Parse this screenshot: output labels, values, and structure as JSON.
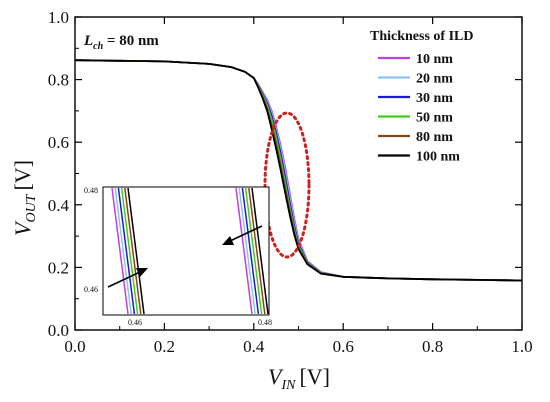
{
  "chart_data": {
    "type": "line",
    "xlabel_main": "V",
    "xlabel_sub": "IN",
    "xlabel_unit": "[V]",
    "ylabel_main": "V",
    "ylabel_sub": "OUT",
    "ylabel_unit": "[V]",
    "xlim": [
      0.0,
      1.0
    ],
    "ylim": [
      0.0,
      1.0
    ],
    "xticks": [
      "0.0",
      "0.2",
      "0.4",
      "0.6",
      "0.8",
      "1.0"
    ],
    "yticks": [
      "0.0",
      "0.2",
      "0.4",
      "0.6",
      "0.8",
      "1.0"
    ],
    "annotation_main": "L",
    "annotation_sub": "ch",
    "annotation_rest": " = 80 nm",
    "legend_title": "Thickness of ILD",
    "legend_position": "top-right",
    "series": [
      {
        "name": "10 nm",
        "color": "#c040e0",
        "x": [
          0.0,
          0.1,
          0.2,
          0.3,
          0.35,
          0.38,
          0.4,
          0.41,
          0.42,
          0.43,
          0.44,
          0.45,
          0.46,
          0.47,
          0.48,
          0.49,
          0.5,
          0.52,
          0.55,
          0.6,
          0.7,
          0.8,
          0.9,
          1.0
        ],
        "y": [
          0.862,
          0.86,
          0.858,
          0.85,
          0.84,
          0.825,
          0.805,
          0.785,
          0.76,
          0.735,
          0.7,
          0.65,
          0.59,
          0.52,
          0.44,
          0.36,
          0.29,
          0.22,
          0.185,
          0.17,
          0.165,
          0.162,
          0.16,
          0.158
        ]
      },
      {
        "name": "20 nm",
        "color": "#8fc4ee",
        "x": [
          0.0,
          0.1,
          0.2,
          0.3,
          0.35,
          0.38,
          0.4,
          0.41,
          0.42,
          0.43,
          0.44,
          0.45,
          0.46,
          0.47,
          0.48,
          0.49,
          0.5,
          0.52,
          0.55,
          0.6,
          0.7,
          0.8,
          0.9,
          1.0
        ],
        "y": [
          0.862,
          0.86,
          0.858,
          0.85,
          0.84,
          0.825,
          0.805,
          0.783,
          0.757,
          0.73,
          0.692,
          0.64,
          0.578,
          0.505,
          0.425,
          0.348,
          0.282,
          0.218,
          0.184,
          0.17,
          0.165,
          0.162,
          0.16,
          0.158
        ]
      },
      {
        "name": "30 nm",
        "color": "#1a1ad0",
        "x": [
          0.0,
          0.1,
          0.2,
          0.3,
          0.35,
          0.38,
          0.4,
          0.41,
          0.42,
          0.43,
          0.44,
          0.45,
          0.46,
          0.47,
          0.48,
          0.49,
          0.5,
          0.52,
          0.55,
          0.6,
          0.7,
          0.8,
          0.9,
          1.0
        ],
        "y": [
          0.862,
          0.86,
          0.858,
          0.85,
          0.84,
          0.825,
          0.805,
          0.781,
          0.754,
          0.725,
          0.684,
          0.63,
          0.565,
          0.49,
          0.41,
          0.336,
          0.275,
          0.216,
          0.183,
          0.17,
          0.165,
          0.162,
          0.16,
          0.158
        ]
      },
      {
        "name": "50 nm",
        "color": "#44cc22",
        "x": [
          0.0,
          0.1,
          0.2,
          0.3,
          0.35,
          0.38,
          0.4,
          0.41,
          0.42,
          0.43,
          0.44,
          0.45,
          0.46,
          0.47,
          0.48,
          0.49,
          0.5,
          0.52,
          0.55,
          0.6,
          0.7,
          0.8,
          0.9,
          1.0
        ],
        "y": [
          0.862,
          0.86,
          0.858,
          0.85,
          0.84,
          0.825,
          0.805,
          0.779,
          0.75,
          0.718,
          0.672,
          0.615,
          0.548,
          0.472,
          0.395,
          0.325,
          0.268,
          0.214,
          0.182,
          0.17,
          0.165,
          0.162,
          0.16,
          0.158
        ]
      },
      {
        "name": "80 nm",
        "color": "#8b4513",
        "x": [
          0.0,
          0.1,
          0.2,
          0.3,
          0.35,
          0.38,
          0.4,
          0.41,
          0.42,
          0.43,
          0.44,
          0.45,
          0.46,
          0.47,
          0.48,
          0.49,
          0.5,
          0.52,
          0.55,
          0.6,
          0.7,
          0.8,
          0.9,
          1.0
        ],
        "y": [
          0.862,
          0.86,
          0.858,
          0.85,
          0.84,
          0.825,
          0.805,
          0.776,
          0.745,
          0.708,
          0.655,
          0.595,
          0.528,
          0.455,
          0.382,
          0.315,
          0.262,
          0.212,
          0.181,
          0.17,
          0.165,
          0.162,
          0.16,
          0.158
        ]
      },
      {
        "name": "100 nm",
        "color": "#000000",
        "x": [
          0.0,
          0.1,
          0.2,
          0.3,
          0.35,
          0.38,
          0.4,
          0.41,
          0.42,
          0.43,
          0.44,
          0.45,
          0.46,
          0.47,
          0.48,
          0.49,
          0.5,
          0.52,
          0.55,
          0.6,
          0.7,
          0.8,
          0.9,
          1.0
        ],
        "y": [
          0.862,
          0.86,
          0.858,
          0.85,
          0.84,
          0.825,
          0.805,
          0.774,
          0.74,
          0.7,
          0.642,
          0.58,
          0.512,
          0.44,
          0.37,
          0.308,
          0.258,
          0.21,
          0.18,
          0.17,
          0.165,
          0.162,
          0.16,
          0.158
        ]
      }
    ],
    "inset": {
      "xticks": [
        "0.46",
        "0.48"
      ],
      "yticks": [
        "0.48",
        "0.46"
      ]
    },
    "highlight_ellipse_color": "#cc2222"
  }
}
